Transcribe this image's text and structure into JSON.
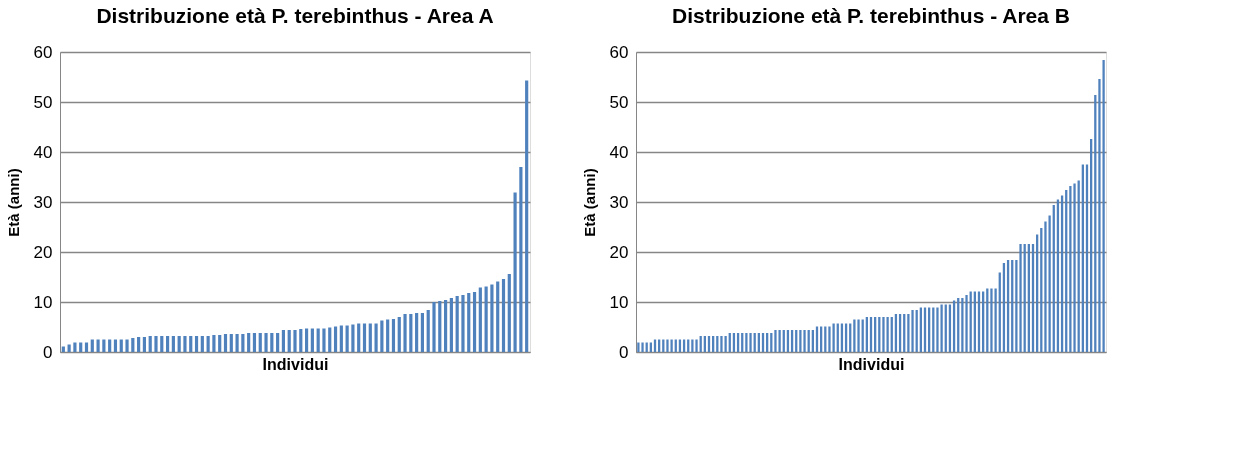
{
  "chart_data": [
    {
      "type": "bar",
      "title": "Distribuzione età P. terebinthus - Area A",
      "xlabel": "Individui",
      "ylabel": "Età (anni)",
      "categories": [
        null,
        null,
        null,
        null,
        null,
        null,
        null,
        null,
        null,
        null,
        null,
        null,
        null,
        null,
        null,
        null,
        null,
        null,
        null,
        null,
        null,
        null,
        null,
        null,
        null,
        null,
        null,
        null,
        null,
        null,
        null,
        null,
        null,
        null,
        null,
        null,
        null,
        null,
        null,
        null,
        null,
        null,
        null,
        null,
        null,
        null,
        null,
        null,
        null,
        null,
        null,
        null,
        null,
        null,
        null,
        null,
        null,
        null,
        null,
        null,
        null,
        null,
        null,
        null,
        null,
        null,
        null,
        null,
        null,
        null,
        null,
        null,
        null,
        null,
        null,
        null,
        null,
        null,
        null,
        null,
        null
      ],
      "values": [
        1.1,
        1.5,
        1.9,
        1.9,
        1.9,
        2.5,
        2.5,
        2.5,
        2.5,
        2.5,
        2.5,
        2.5,
        2.8,
        3.0,
        3.0,
        3.2,
        3.2,
        3.2,
        3.2,
        3.2,
        3.2,
        3.2,
        3.2,
        3.2,
        3.2,
        3.2,
        3.4,
        3.4,
        3.6,
        3.6,
        3.6,
        3.6,
        3.8,
        3.8,
        3.8,
        3.8,
        3.8,
        3.8,
        4.4,
        4.4,
        4.4,
        4.6,
        4.7,
        4.7,
        4.7,
        4.7,
        4.9,
        5.1,
        5.3,
        5.3,
        5.5,
        5.7,
        5.7,
        5.7,
        5.7,
        6.3,
        6.5,
        6.6,
        7.0,
        7.6,
        7.6,
        7.8,
        7.8,
        8.4,
        10.0,
        10.2,
        10.4,
        10.8,
        11.2,
        11.4,
        11.8,
        12.0,
        12.9,
        13.1,
        13.5,
        14.1,
        14.6,
        15.6,
        31.9,
        37.0,
        54.3
      ],
      "color": "#4f81bd",
      "ylim": [
        0,
        60
      ],
      "yticks": [
        0,
        10,
        20,
        30,
        40,
        50,
        60
      ],
      "grid": "y",
      "tick_labels": "y"
    },
    {
      "type": "bar",
      "title": "Distribuzione età P. terebinthus - Area B",
      "xlabel": "Individui",
      "ylabel": "Età (anni)",
      "categories": [
        null,
        null,
        null,
        null,
        null,
        null,
        null,
        null,
        null,
        null,
        null,
        null,
        null,
        null,
        null,
        null,
        null,
        null,
        null,
        null,
        null,
        null,
        null,
        null,
        null,
        null,
        null,
        null,
        null,
        null,
        null,
        null,
        null,
        null,
        null,
        null,
        null,
        null,
        null,
        null,
        null,
        null,
        null,
        null,
        null,
        null,
        null,
        null,
        null,
        null,
        null,
        null,
        null,
        null,
        null,
        null,
        null,
        null,
        null,
        null,
        null,
        null,
        null,
        null,
        null,
        null,
        null,
        null,
        null,
        null,
        null,
        null,
        null,
        null,
        null,
        null,
        null,
        null,
        null,
        null,
        null,
        null,
        null,
        null,
        null,
        null,
        null,
        null,
        null,
        null,
        null,
        null,
        null,
        null,
        null,
        null,
        null,
        null,
        null,
        null,
        null,
        null,
        null,
        null,
        null,
        null,
        null,
        null,
        null,
        null,
        null,
        null,
        null
      ],
      "values": [
        1.9,
        1.9,
        1.9,
        1.9,
        2.5,
        2.5,
        2.5,
        2.5,
        2.5,
        2.5,
        2.5,
        2.5,
        2.5,
        2.5,
        2.5,
        3.2,
        3.2,
        3.2,
        3.2,
        3.2,
        3.2,
        3.2,
        3.8,
        3.8,
        3.8,
        3.8,
        3.8,
        3.8,
        3.8,
        3.8,
        3.8,
        3.8,
        3.8,
        4.4,
        4.4,
        4.4,
        4.4,
        4.4,
        4.4,
        4.4,
        4.4,
        4.4,
        4.4,
        5.1,
        5.1,
        5.1,
        5.1,
        5.7,
        5.7,
        5.7,
        5.7,
        5.7,
        6.5,
        6.5,
        6.5,
        7.0,
        7.0,
        7.0,
        7.0,
        7.0,
        7.0,
        7.0,
        7.6,
        7.6,
        7.6,
        7.6,
        8.4,
        8.4,
        8.9,
        8.9,
        8.9,
        8.9,
        8.9,
        9.5,
        9.5,
        9.5,
        10.3,
        10.8,
        10.8,
        11.4,
        12.1,
        12.1,
        12.1,
        12.1,
        12.7,
        12.7,
        12.7,
        15.9,
        17.8,
        18.4,
        18.4,
        18.4,
        21.6,
        21.6,
        21.6,
        21.6,
        23.5,
        24.8,
        26.1,
        27.3,
        29.4,
        30.5,
        31.3,
        32.4,
        33.2,
        33.7,
        34.3,
        37.5,
        37.5,
        42.6,
        51.4,
        54.6,
        58.4
      ],
      "color": "#4f81bd",
      "ylim": [
        0,
        60
      ],
      "yticks": [
        0,
        10,
        20,
        30,
        40,
        50,
        60
      ],
      "grid": "y",
      "tick_labels": "y"
    }
  ]
}
